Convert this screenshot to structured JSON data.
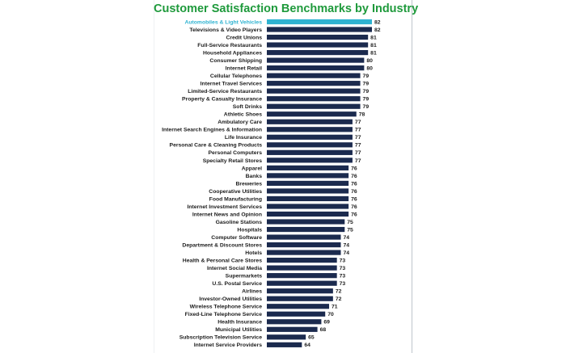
{
  "colors": {
    "title": "#1f9a3c",
    "bar": "#1b2a4e",
    "highlight_bar": "#2fb3d1",
    "text": "#1b1b1b"
  },
  "chart_data": {
    "type": "bar",
    "orientation": "horizontal",
    "title": "Customer Satisfaction Benchmarks by Industry",
    "xlabel": "",
    "ylabel": "",
    "xlim": [
      55,
      82
    ],
    "grid": false,
    "legend": "none",
    "highlight_index": 0,
    "categories": [
      "Automobiles & Light Vehicles",
      "Televisions & Video Players",
      "Credit Unions",
      "Full-Service Restaurants",
      "Household Appliances",
      "Consumer Shipping",
      "Internet Retail",
      "Cellular Telephones",
      "Internet Travel Services",
      "Limited-Service Restaurants",
      "Property & Casualty Insurance",
      "Soft Drinks",
      "Athletic Shoes",
      "Ambulatory Care",
      "Internet Search Engines & Information",
      "Life Insurance",
      "Personal Care & Cleaning Products",
      "Personal Computers",
      "Specialty Retail Stores",
      "Apparel",
      "Banks",
      "Breweries",
      "Cooperative Utilities",
      "Food Manufacturing",
      "Internet Investment Services",
      "Internet News and Opinion",
      "Gasoline Stations",
      "Hospitals",
      "Computer Software",
      "Department & Discount Stores",
      "Hotels",
      "Health & Personal Care Stores",
      "Internet Social Media",
      "Supermarkets",
      "U.S. Postal Service",
      "Airlines",
      "Investor-Owned Utilities",
      "Wireless Telephone Service",
      "Fixed-Line Telephone Service",
      "Health Insurance",
      "Municipal Utilities",
      "Subscription Television Service",
      "Internet Service Providers"
    ],
    "values": [
      82,
      82,
      81,
      81,
      81,
      80,
      80,
      79,
      79,
      79,
      79,
      79,
      78,
      77,
      77,
      77,
      77,
      77,
      77,
      76,
      76,
      76,
      76,
      76,
      76,
      76,
      75,
      75,
      74,
      74,
      74,
      73,
      73,
      73,
      73,
      72,
      72,
      71,
      70,
      69,
      68,
      65,
      64
    ]
  }
}
